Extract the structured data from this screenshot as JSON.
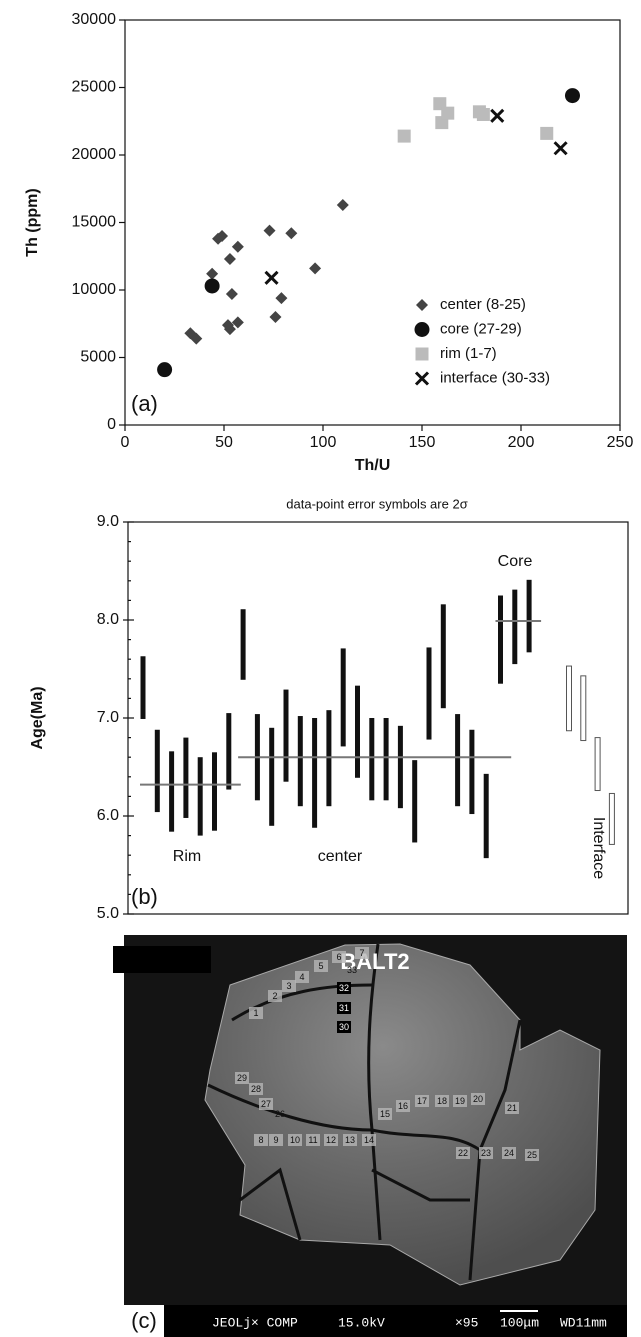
{
  "chart_data": [
    {
      "type": "scatter",
      "panel_label": "(a)",
      "x_label": "Th/U",
      "y_label": "Th (ppm)",
      "xlim": [
        0,
        250
      ],
      "xticks": [
        0,
        50,
        100,
        150,
        200,
        250
      ],
      "ylim": [
        0,
        30000
      ],
      "yticks": [
        0,
        5000,
        10000,
        15000,
        20000,
        25000,
        30000
      ],
      "legend": "lower right",
      "series": [
        {
          "name": "center (8-25)",
          "marker": "diamond",
          "color": "#444444",
          "x": [
            47,
            49,
            53,
            57,
            44,
            54,
            73,
            84,
            110,
            96,
            79,
            76,
            33,
            36,
            52,
            53,
            57
          ],
          "values": [
            13800,
            14000,
            12300,
            13200,
            11200,
            9700,
            14400,
            14200,
            16300,
            11600,
            9400,
            8000,
            6800,
            6400,
            7400,
            7100,
            7600
          ]
        },
        {
          "name": "core (27-29)",
          "marker": "circle",
          "color": "#111111",
          "x": [
            20,
            44,
            226
          ],
          "values": [
            4100,
            10300,
            24400
          ]
        },
        {
          "name": "rim (1-7)",
          "marker": "square",
          "color": "#bbbbbb",
          "x": [
            141,
            159,
            160,
            163,
            179,
            181,
            213
          ],
          "values": [
            21400,
            23800,
            22400,
            23100,
            23200,
            23000,
            21600
          ]
        },
        {
          "name": "interface (30-33)",
          "marker": "x",
          "color": "#111111",
          "x": [
            74,
            188,
            220
          ],
          "values": [
            10900,
            22900,
            20500
          ]
        }
      ]
    },
    {
      "type": "errorbar",
      "panel_label": "(b)",
      "title": "data-point error symbols are 2σ",
      "y_label": "Age(Ma)",
      "ylim": [
        5,
        9
      ],
      "yticks": [
        {
          "value": 5,
          "label": "5.0"
        },
        {
          "value": 6,
          "label": "6.0"
        },
        {
          "value": 7,
          "label": "7.0"
        },
        {
          "value": 8,
          "label": "8.0"
        },
        {
          "value": 9,
          "label": "9.0"
        }
      ],
      "minor_yticks": [
        5.2,
        5.4,
        5.6,
        5.8,
        6.2,
        6.4,
        6.6,
        6.8,
        7.2,
        7.4,
        7.6,
        7.8,
        8.2,
        8.4,
        8.6,
        8.8
      ],
      "series": [
        {
          "name": "Rim",
          "color": "#111111",
          "style": "solid",
          "values": [
            7.31,
            6.46,
            6.25,
            6.39,
            6.2,
            6.25,
            6.66
          ],
          "errors": [
            0.32,
            0.42,
            0.41,
            0.41,
            0.4,
            0.4,
            0.39
          ],
          "mean": 6.32
        },
        {
          "name": "center",
          "color": "#111111",
          "style": "solid",
          "values": [
            7.75,
            6.6,
            6.4,
            6.82,
            6.56,
            6.44,
            6.59,
            7.21,
            6.86,
            6.58,
            6.58,
            6.5,
            6.15,
            7.25,
            7.63,
            6.57,
            6.45,
            6.0
          ],
          "errors": [
            0.36,
            0.44,
            0.5,
            0.47,
            0.46,
            0.56,
            0.49,
            0.5,
            0.47,
            0.42,
            0.42,
            0.42,
            0.42,
            0.47,
            0.53,
            0.47,
            0.43,
            0.43
          ],
          "mean": 6.6
        },
        {
          "name": "Core",
          "color": "#111111",
          "style": "solid",
          "values": [
            7.8,
            7.93,
            8.04
          ],
          "errors": [
            0.45,
            0.38,
            0.37
          ],
          "mean": 7.99
        },
        {
          "name": "Interface",
          "color": "#555555",
          "style": "hollow",
          "values": [
            7.2,
            7.1,
            6.53,
            5.97
          ],
          "errors": [
            0.33,
            0.33,
            0.27,
            0.26
          ]
        }
      ]
    }
  ],
  "image": {
    "panel_label": "(c)",
    "title": "BALT2",
    "spot_labels": [
      "1",
      "2",
      "3",
      "4",
      "5",
      "6",
      "7",
      "8",
      "9",
      "10",
      "11",
      "12",
      "13",
      "14",
      "15",
      "16",
      "17",
      "18",
      "19",
      "20",
      "21",
      "22",
      "23",
      "24",
      "25",
      "26",
      "27",
      "28",
      "29",
      "30",
      "31",
      "32",
      "33"
    ],
    "info_bar": [
      "JEOLj× COMP",
      "15.0kV",
      "×95",
      "100μm",
      "WD11mm"
    ]
  }
}
